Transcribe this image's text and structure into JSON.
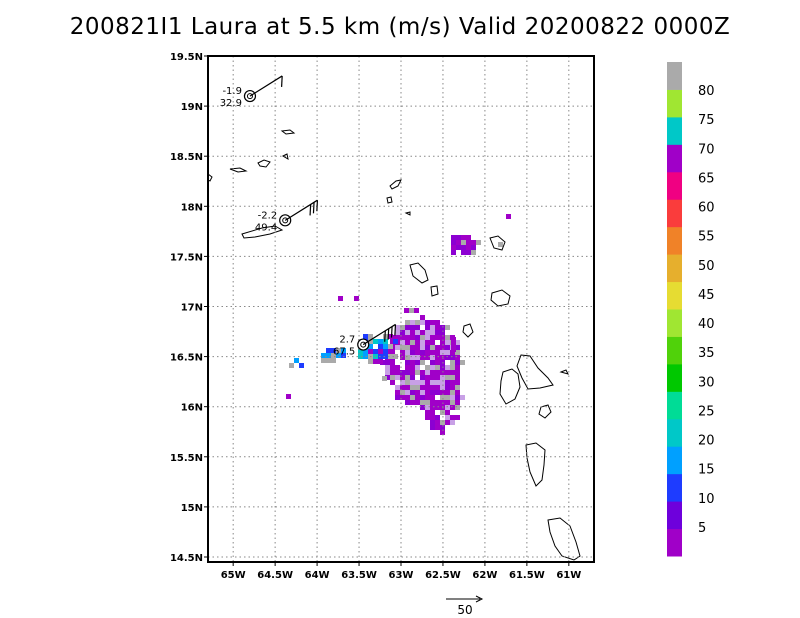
{
  "title": "200821I1 Laura at 5.5 km (m/s) Valid 20200822 0000Z",
  "chart_data": {
    "type": "map",
    "lon_range": [
      -65.3,
      -60.7
    ],
    "lat_range": [
      14.45,
      19.5
    ],
    "lon_ticks": [
      {
        "value": -65,
        "label": "65W"
      },
      {
        "value": -64.5,
        "label": "64.5W"
      },
      {
        "value": -64,
        "label": "64W"
      },
      {
        "value": -63.5,
        "label": "63.5W"
      },
      {
        "value": -63,
        "label": "63W"
      },
      {
        "value": -62.5,
        "label": "62.5W"
      },
      {
        "value": -62,
        "label": "62W"
      },
      {
        "value": -61.5,
        "label": "61.5W"
      },
      {
        "value": -61,
        "label": "61W"
      }
    ],
    "lat_ticks": [
      {
        "value": 19.5,
        "label": "19.5N"
      },
      {
        "value": 19,
        "label": "19N"
      },
      {
        "value": 18.5,
        "label": "18.5N"
      },
      {
        "value": 18,
        "label": "18N"
      },
      {
        "value": 17.5,
        "label": "17.5N"
      },
      {
        "value": 17,
        "label": "17N"
      },
      {
        "value": 16.5,
        "label": "16.5N"
      },
      {
        "value": 16,
        "label": "16N"
      },
      {
        "value": 15.5,
        "label": "15.5N"
      },
      {
        "value": 15,
        "label": "15N"
      },
      {
        "value": 14.5,
        "label": "14.5N"
      }
    ],
    "grid": true,
    "colorbar": {
      "labels": [
        "5",
        "10",
        "15",
        "20",
        "25",
        "30",
        "35",
        "40",
        "45",
        "50",
        "55",
        "60",
        "65",
        "70",
        "75",
        "80"
      ],
      "colors": [
        "#a000c8",
        "#6e00dc",
        "#1e3cff",
        "#00a0ff",
        "#00c8c8",
        "#00dc96",
        "#00c800",
        "#50d20a",
        "#a0e632",
        "#e6dc32",
        "#e6af2d",
        "#f08228",
        "#fa3c3c",
        "#f00082",
        "#a000c8",
        "#00c8c8",
        "#a0e632",
        "#aaaaaa"
      ]
    },
    "stations": [
      {
        "lon": -64.8,
        "lat": 19.1,
        "top_label": "-1.9",
        "bottom_label": "32.9"
      },
      {
        "lon": -64.38,
        "lat": 17.86,
        "top_label": "-2.2",
        "bottom_label": "49.4"
      },
      {
        "lon": -63.45,
        "lat": 16.62,
        "top_label": "2.7",
        "bottom_label": "67.5"
      }
    ],
    "reference_vector": {
      "label": "50"
    }
  }
}
